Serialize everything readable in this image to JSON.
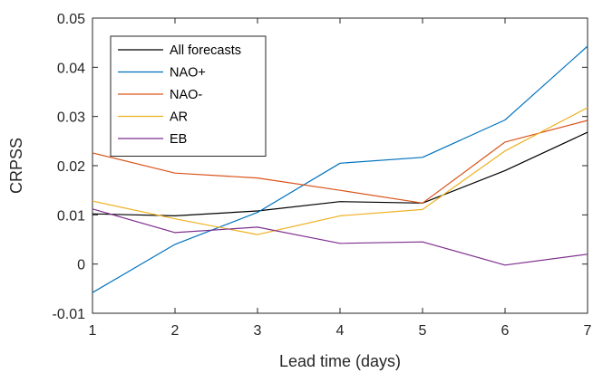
{
  "chart_data": {
    "type": "line",
    "xlabel": "Lead time (days)",
    "ylabel": "CRPSS",
    "x": [
      1,
      2,
      3,
      4,
      5,
      6,
      7
    ],
    "xlim": [
      1,
      7
    ],
    "ylim": [
      -0.01,
      0.05
    ],
    "xticks": [
      1,
      2,
      3,
      4,
      5,
      6,
      7
    ],
    "yticks": [
      -0.01,
      0,
      0.01,
      0.02,
      0.03,
      0.04,
      0.05
    ],
    "ytick_labels": [
      "-0.01",
      "0",
      "0.01",
      "0.02",
      "0.03",
      "0.04",
      "0.05"
    ],
    "grid": false,
    "legend_position": "top-left",
    "series": [
      {
        "name": "All forecasts",
        "color": "#000000",
        "values": [
          0.0102,
          0.0098,
          0.0108,
          0.0127,
          0.0124,
          0.019,
          0.0268
        ]
      },
      {
        "name": "NAO+",
        "color": "#0072BD",
        "values": [
          -0.0058,
          0.004,
          0.0105,
          0.0205,
          0.0217,
          0.0293,
          0.0443
        ]
      },
      {
        "name": "NAO-",
        "color": "#D95319",
        "values": [
          0.0226,
          0.0185,
          0.0175,
          0.015,
          0.0124,
          0.0248,
          0.0292
        ]
      },
      {
        "name": "AR",
        "color": "#EDB120",
        "values": [
          0.0128,
          0.0092,
          0.006,
          0.0098,
          0.0111,
          0.023,
          0.0318
        ]
      },
      {
        "name": "EB",
        "color": "#7E2F8E",
        "values": [
          0.0112,
          0.0064,
          0.0075,
          0.0042,
          0.0045,
          -0.0002,
          0.002
        ]
      }
    ]
  }
}
